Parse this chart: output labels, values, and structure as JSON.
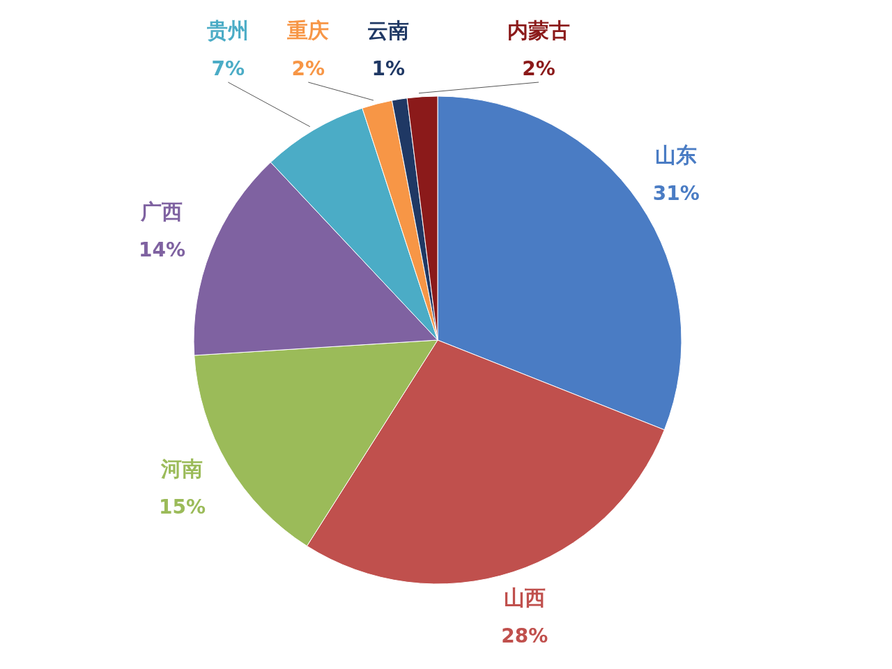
{
  "chart_data": {
    "type": "pie",
    "categories": [
      "山东",
      "山西",
      "河南",
      "广西",
      "贵州",
      "重庆",
      "云南",
      "内蒙古"
    ],
    "values": [
      31,
      28,
      15,
      14,
      7,
      2,
      1,
      2
    ],
    "value_labels": [
      "31%",
      "28%",
      "15%",
      "14%",
      "7%",
      "2%",
      "1%",
      "2%"
    ],
    "colors": [
      "#4a7cc4",
      "#c0504d",
      "#9bbb59",
      "#7f62a1",
      "#4bacc6",
      "#f79646",
      "#1f3864",
      "#8b1a1a"
    ],
    "legend": false
  }
}
